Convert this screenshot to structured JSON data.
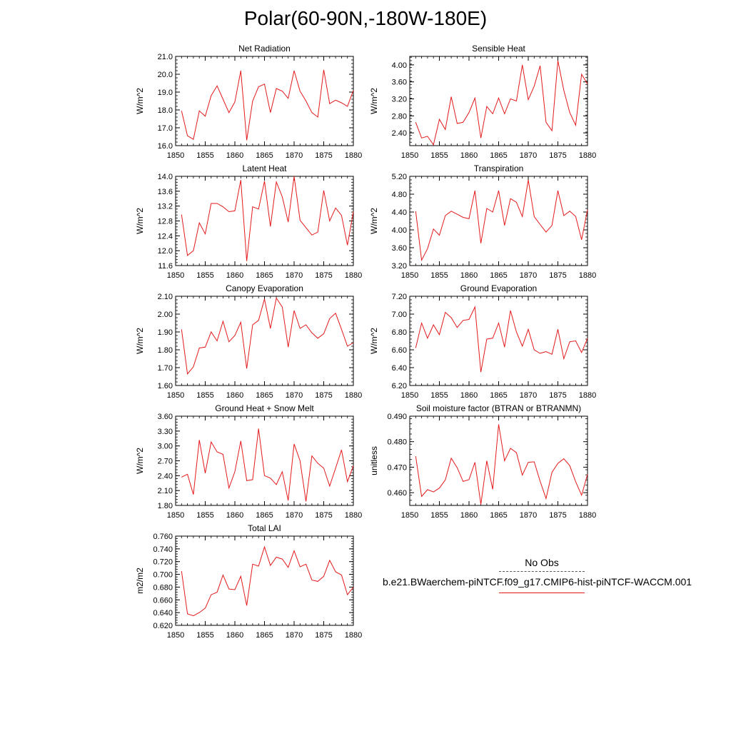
{
  "title": "Polar(60-90N,-180W-180E)",
  "colors": {
    "series": "#e31a1c",
    "axis": "#000000",
    "obs": "#555555"
  },
  "legend": {
    "obs_label": "No Obs",
    "case_label": "b.e21.BWaerchem-piNTCF.f09_g17.CMIP6-hist-piNTCF-WACCM.001"
  },
  "chart_data": [
    {
      "type": "line",
      "title": "Net Radiation",
      "ylabel": "W/m^2",
      "xlim": [
        1850,
        1880
      ],
      "ylim": [
        16.0,
        21.0
      ],
      "xticks": [
        1850,
        1855,
        1860,
        1865,
        1870,
        1875,
        1880
      ],
      "xtick_labels": [
        "1850",
        "1855",
        "1860",
        "1865",
        "1870",
        "1875",
        "1880"
      ],
      "yticks": [
        16.0,
        17.0,
        18.0,
        19.0,
        20.0,
        21.0
      ],
      "ytick_labels": [
        "16.0",
        "17.0",
        "18.0",
        "19.0",
        "20.0",
        "21.0"
      ],
      "x": [
        1851,
        1852,
        1853,
        1854,
        1855,
        1856,
        1857,
        1858,
        1859,
        1860,
        1861,
        1862,
        1863,
        1864,
        1865,
        1866,
        1867,
        1868,
        1869,
        1870,
        1871,
        1872,
        1873,
        1874,
        1875,
        1876,
        1877,
        1878,
        1879,
        1880
      ],
      "series": [
        {
          "values": [
            17.95,
            16.55,
            16.35,
            17.95,
            17.65,
            18.8,
            19.35,
            18.6,
            17.85,
            18.45,
            20.2,
            16.3,
            18.5,
            19.3,
            19.45,
            17.85,
            19.2,
            19.05,
            18.65,
            20.2,
            19.05,
            18.5,
            17.85,
            17.6,
            20.25,
            18.35,
            18.55,
            18.4,
            18.2,
            19.1
          ]
        }
      ]
    },
    {
      "type": "line",
      "title": "Sensible Heat",
      "ylabel": "W/m^2",
      "xlim": [
        1850,
        1880
      ],
      "ylim": [
        2.1,
        4.2
      ],
      "xticks": [
        1850,
        1855,
        1860,
        1865,
        1870,
        1875,
        1880
      ],
      "xtick_labels": [
        "1850",
        "1855",
        "1860",
        "1865",
        "1870",
        "1875",
        "1880"
      ],
      "yticks": [
        2.4,
        2.8,
        3.2,
        3.6,
        4.0
      ],
      "ytick_labels": [
        "2.40",
        "2.80",
        "3.20",
        "3.60",
        "4.00"
      ],
      "x": [
        1851,
        1852,
        1853,
        1854,
        1855,
        1856,
        1857,
        1858,
        1859,
        1860,
        1861,
        1862,
        1863,
        1864,
        1865,
        1866,
        1867,
        1868,
        1869,
        1870,
        1871,
        1872,
        1873,
        1874,
        1875,
        1876,
        1877,
        1878,
        1879,
        1880
      ],
      "series": [
        {
          "values": [
            2.65,
            2.28,
            2.32,
            2.12,
            2.72,
            2.48,
            3.25,
            2.62,
            2.65,
            2.88,
            3.22,
            2.28,
            3.02,
            2.85,
            3.22,
            2.85,
            3.2,
            3.15,
            4.0,
            3.18,
            3.5,
            3.98,
            2.65,
            2.45,
            4.1,
            3.4,
            2.88,
            2.58,
            3.78,
            3.55
          ]
        }
      ]
    },
    {
      "type": "line",
      "title": "Latent Heat",
      "ylabel": "W/m^2",
      "xlim": [
        1850,
        1880
      ],
      "ylim": [
        11.6,
        14.0
      ],
      "xticks": [
        1850,
        1855,
        1860,
        1865,
        1870,
        1875,
        1880
      ],
      "xtick_labels": [
        "1850",
        "1855",
        "1860",
        "1865",
        "1870",
        "1875",
        "1880"
      ],
      "yticks": [
        11.6,
        12.0,
        12.4,
        12.8,
        13.2,
        13.6,
        14.0
      ],
      "ytick_labels": [
        "11.6",
        "12.0",
        "12.4",
        "12.8",
        "13.2",
        "13.6",
        "14.0"
      ],
      "x": [
        1851,
        1852,
        1853,
        1854,
        1855,
        1856,
        1857,
        1858,
        1859,
        1860,
        1861,
        1862,
        1863,
        1864,
        1865,
        1866,
        1867,
        1868,
        1869,
        1870,
        1871,
        1872,
        1873,
        1874,
        1875,
        1876,
        1877,
        1878,
        1879,
        1880
      ],
      "series": [
        {
          "values": [
            12.97,
            11.87,
            12.0,
            12.75,
            12.45,
            13.27,
            13.27,
            13.18,
            13.05,
            13.07,
            13.9,
            11.72,
            13.18,
            13.12,
            13.87,
            12.65,
            13.85,
            13.45,
            12.77,
            14.0,
            12.82,
            12.62,
            12.42,
            12.5,
            13.62,
            12.8,
            13.15,
            12.95,
            12.15,
            13.05
          ]
        }
      ]
    },
    {
      "type": "line",
      "title": "Transpiration",
      "ylabel": "W/m^2",
      "xlim": [
        1850,
        1880
      ],
      "ylim": [
        3.2,
        5.2
      ],
      "xticks": [
        1850,
        1855,
        1860,
        1865,
        1870,
        1875,
        1880
      ],
      "xtick_labels": [
        "1850",
        "1855",
        "1860",
        "1865",
        "1870",
        "1875",
        "1880"
      ],
      "yticks": [
        3.2,
        3.6,
        4.0,
        4.4,
        4.8,
        5.2
      ],
      "ytick_labels": [
        "3.20",
        "3.60",
        "4.00",
        "4.40",
        "4.80",
        "5.20"
      ],
      "x": [
        1851,
        1852,
        1853,
        1854,
        1855,
        1856,
        1857,
        1858,
        1859,
        1860,
        1861,
        1862,
        1863,
        1864,
        1865,
        1866,
        1867,
        1868,
        1869,
        1870,
        1871,
        1872,
        1873,
        1874,
        1875,
        1876,
        1877,
        1878,
        1879,
        1880
      ],
      "series": [
        {
          "values": [
            4.42,
            3.32,
            3.58,
            4.02,
            3.88,
            4.32,
            4.42,
            4.35,
            4.28,
            4.25,
            4.88,
            3.7,
            4.48,
            4.4,
            4.88,
            4.1,
            4.7,
            4.62,
            4.3,
            5.12,
            4.3,
            4.12,
            3.95,
            4.1,
            4.88,
            4.32,
            4.42,
            4.3,
            3.78,
            4.45
          ]
        }
      ]
    },
    {
      "type": "line",
      "title": "Canopy Evaporation",
      "ylabel": "W/m^2",
      "xlim": [
        1850,
        1880
      ],
      "ylim": [
        1.6,
        2.1
      ],
      "xticks": [
        1850,
        1855,
        1860,
        1865,
        1870,
        1875,
        1880
      ],
      "xtick_labels": [
        "1850",
        "1855",
        "1860",
        "1865",
        "1870",
        "1875",
        "1880"
      ],
      "yticks": [
        1.6,
        1.7,
        1.8,
        1.9,
        2.0,
        2.1
      ],
      "ytick_labels": [
        "1.60",
        "1.70",
        "1.80",
        "1.90",
        "2.00",
        "2.10"
      ],
      "x": [
        1851,
        1852,
        1853,
        1854,
        1855,
        1856,
        1857,
        1858,
        1859,
        1860,
        1861,
        1862,
        1863,
        1864,
        1865,
        1866,
        1867,
        1868,
        1869,
        1870,
        1871,
        1872,
        1873,
        1874,
        1875,
        1876,
        1877,
        1878,
        1879,
        1880
      ],
      "series": [
        {
          "values": [
            1.915,
            1.665,
            1.705,
            1.81,
            1.815,
            1.9,
            1.85,
            1.96,
            1.845,
            1.88,
            1.955,
            1.695,
            1.94,
            1.965,
            2.085,
            1.92,
            2.09,
            2.04,
            1.815,
            2.02,
            1.92,
            1.94,
            1.895,
            1.865,
            1.89,
            1.975,
            2.005,
            1.915,
            1.82,
            1.84
          ]
        }
      ]
    },
    {
      "type": "line",
      "title": "Ground Evaporation",
      "ylabel": "W/m^2",
      "xlim": [
        1850,
        1880
      ],
      "ylim": [
        6.2,
        7.2
      ],
      "xticks": [
        1850,
        1855,
        1860,
        1865,
        1870,
        1875,
        1880
      ],
      "xtick_labels": [
        "1850",
        "1855",
        "1860",
        "1865",
        "1870",
        "1875",
        "1880"
      ],
      "yticks": [
        6.2,
        6.4,
        6.6,
        6.8,
        7.0,
        7.2
      ],
      "ytick_labels": [
        "6.20",
        "6.40",
        "6.60",
        "6.80",
        "7.00",
        "7.20"
      ],
      "x": [
        1851,
        1852,
        1853,
        1854,
        1855,
        1856,
        1857,
        1858,
        1859,
        1860,
        1861,
        1862,
        1863,
        1864,
        1865,
        1866,
        1867,
        1868,
        1869,
        1870,
        1871,
        1872,
        1873,
        1874,
        1875,
        1876,
        1877,
        1878,
        1879,
        1880
      ],
      "series": [
        {
          "values": [
            6.62,
            6.9,
            6.73,
            6.88,
            6.77,
            7.02,
            6.96,
            6.85,
            6.93,
            6.94,
            7.08,
            6.35,
            6.72,
            6.73,
            6.9,
            6.63,
            7.04,
            6.8,
            6.64,
            6.83,
            6.6,
            6.56,
            6.58,
            6.55,
            6.83,
            6.5,
            6.69,
            6.7,
            6.57,
            6.73
          ]
        }
      ]
    },
    {
      "type": "line",
      "title": "Ground Heat + Snow Melt",
      "ylabel": "W/m^2",
      "xlim": [
        1850,
        1880
      ],
      "ylim": [
        1.8,
        3.6
      ],
      "xticks": [
        1850,
        1855,
        1860,
        1865,
        1870,
        1875,
        1880
      ],
      "xtick_labels": [
        "1850",
        "1855",
        "1860",
        "1865",
        "1870",
        "1875",
        "1880"
      ],
      "yticks": [
        1.8,
        2.1,
        2.4,
        2.7,
        3.0,
        3.3,
        3.6
      ],
      "ytick_labels": [
        "1.80",
        "2.10",
        "2.40",
        "2.70",
        "3.00",
        "3.30",
        "3.60"
      ],
      "x": [
        1851,
        1852,
        1853,
        1854,
        1855,
        1856,
        1857,
        1858,
        1859,
        1860,
        1861,
        1862,
        1863,
        1864,
        1865,
        1866,
        1867,
        1868,
        1869,
        1870,
        1871,
        1872,
        1873,
        1874,
        1875,
        1876,
        1877,
        1878,
        1879,
        1880
      ],
      "series": [
        {
          "values": [
            2.37,
            2.43,
            2.02,
            3.12,
            2.45,
            3.08,
            2.88,
            2.83,
            2.15,
            2.48,
            3.1,
            2.3,
            2.32,
            3.35,
            2.4,
            2.35,
            2.22,
            2.48,
            1.9,
            3.04,
            2.7,
            1.88,
            2.8,
            2.65,
            2.55,
            2.19,
            2.55,
            2.92,
            2.28,
            2.6
          ]
        }
      ]
    },
    {
      "type": "line",
      "title": "Soil moisture factor (BTRAN or BTRANMN)",
      "ylabel": "unitless",
      "xlim": [
        1850,
        1880
      ],
      "ylim": [
        0.455,
        0.49
      ],
      "xticks": [
        1850,
        1855,
        1860,
        1865,
        1870,
        1875,
        1880
      ],
      "xtick_labels": [
        "1850",
        "1855",
        "1860",
        "1865",
        "1870",
        "1875",
        "1880"
      ],
      "yticks": [
        0.46,
        0.47,
        0.48,
        0.49
      ],
      "ytick_labels": [
        "0.460",
        "0.470",
        "0.480",
        "0.490"
      ],
      "x": [
        1851,
        1852,
        1853,
        1854,
        1855,
        1856,
        1857,
        1858,
        1859,
        1860,
        1861,
        1862,
        1863,
        1864,
        1865,
        1866,
        1867,
        1868,
        1869,
        1870,
        1871,
        1872,
        1873,
        1874,
        1875,
        1876,
        1877,
        1878,
        1879,
        1880
      ],
      "series": [
        {
          "values": [
            0.4743,
            0.4585,
            0.4612,
            0.4603,
            0.4618,
            0.465,
            0.4735,
            0.4698,
            0.4644,
            0.4651,
            0.4719,
            0.4554,
            0.4725,
            0.4613,
            0.4868,
            0.4725,
            0.4774,
            0.4757,
            0.4669,
            0.4719,
            0.4721,
            0.4645,
            0.4577,
            0.468,
            0.4715,
            0.4733,
            0.4706,
            0.4643,
            0.459,
            0.4672
          ]
        }
      ]
    },
    {
      "type": "line",
      "title": "Total LAI",
      "ylabel": "m2/m2",
      "xlim": [
        1850,
        1880
      ],
      "ylim": [
        0.62,
        0.76
      ],
      "xticks": [
        1850,
        1855,
        1860,
        1865,
        1870,
        1875,
        1880
      ],
      "xtick_labels": [
        "1850",
        "1855",
        "1860",
        "1865",
        "1870",
        "1875",
        "1880"
      ],
      "yticks": [
        0.62,
        0.64,
        0.66,
        0.68,
        0.7,
        0.72,
        0.74,
        0.76
      ],
      "ytick_labels": [
        "0.620",
        "0.640",
        "0.660",
        "0.680",
        "0.700",
        "0.720",
        "0.740",
        "0.760"
      ],
      "x": [
        1851,
        1852,
        1853,
        1854,
        1855,
        1856,
        1857,
        1858,
        1859,
        1860,
        1861,
        1862,
        1863,
        1864,
        1865,
        1866,
        1867,
        1868,
        1869,
        1870,
        1871,
        1872,
        1873,
        1874,
        1875,
        1876,
        1877,
        1878,
        1879,
        1880
      ],
      "series": [
        {
          "values": [
            0.705,
            0.638,
            0.635,
            0.64,
            0.647,
            0.668,
            0.672,
            0.699,
            0.677,
            0.676,
            0.697,
            0.651,
            0.716,
            0.713,
            0.743,
            0.714,
            0.727,
            0.724,
            0.711,
            0.737,
            0.712,
            0.716,
            0.691,
            0.689,
            0.697,
            0.722,
            0.704,
            0.699,
            0.668,
            0.68
          ]
        }
      ]
    }
  ]
}
